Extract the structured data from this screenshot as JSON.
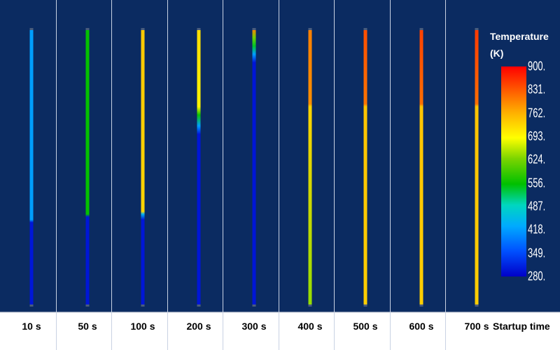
{
  "legend": {
    "title_line1": "Temperature",
    "title_line2": "(K)",
    "ticks": [
      "900.",
      "831.",
      "762.",
      "693.",
      "624.",
      "556.",
      "487.",
      "418.",
      "349.",
      "280."
    ]
  },
  "xaxis_label": "Startup time",
  "panels": [
    {
      "label": "10 s",
      "temp_profile": [
        [
          0,
          300
        ],
        [
          0.3,
          300
        ],
        [
          0.31,
          420
        ],
        [
          1.0,
          420
        ]
      ]
    },
    {
      "label": "50 s",
      "temp_profile": [
        [
          0,
          300
        ],
        [
          0.32,
          300
        ],
        [
          0.33,
          555
        ],
        [
          1.0,
          555
        ]
      ]
    },
    {
      "label": "100 s",
      "temp_profile": [
        [
          0,
          300
        ],
        [
          0.31,
          300
        ],
        [
          0.33,
          440
        ],
        [
          0.34,
          730
        ],
        [
          1.0,
          740
        ]
      ]
    },
    {
      "label": "200 s",
      "temp_profile": [
        [
          0,
          300
        ],
        [
          0.62,
          300
        ],
        [
          0.65,
          420
        ],
        [
          0.69,
          560
        ],
        [
          0.72,
          700
        ],
        [
          1.0,
          720
        ]
      ]
    },
    {
      "label": "300 s",
      "temp_profile": [
        [
          0,
          300
        ],
        [
          0.88,
          300
        ],
        [
          0.91,
          420
        ],
        [
          0.94,
          540
        ],
        [
          0.97,
          620
        ],
        [
          1.0,
          800
        ]
      ]
    },
    {
      "label": "400 s",
      "temp_profile": [
        [
          0,
          640
        ],
        [
          0.72,
          730
        ],
        [
          0.73,
          790
        ],
        [
          1.0,
          800
        ]
      ]
    },
    {
      "label": "500 s",
      "temp_profile": [
        [
          0,
          735
        ],
        [
          0.72,
          745
        ],
        [
          0.73,
          810
        ],
        [
          1.0,
          840
        ]
      ]
    },
    {
      "label": "600 s",
      "temp_profile": [
        [
          0,
          735
        ],
        [
          0.72,
          745
        ],
        [
          0.73,
          815
        ],
        [
          1.0,
          850
        ]
      ]
    },
    {
      "label": "700 s",
      "temp_profile": [
        [
          0,
          735
        ],
        [
          0.72,
          745
        ],
        [
          0.73,
          815
        ],
        [
          1.0,
          855
        ]
      ]
    }
  ],
  "colors": {
    "background": "#0b2b61",
    "divider": "#c9d2e3",
    "rod_cap": "#4a5c7c"
  }
}
